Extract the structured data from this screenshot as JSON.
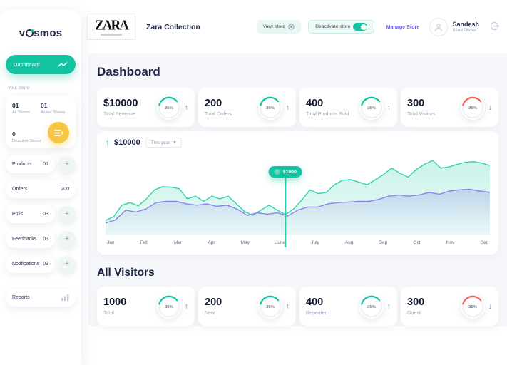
{
  "brand": {
    "prefix": "v",
    "suffix": "smos"
  },
  "header": {
    "store_logo": "ZARA",
    "store_name": "Zara Collection",
    "view_store_label": "View store",
    "deactivate_label": "Deactivate store",
    "manage_store_label": "Manage Store",
    "user": {
      "name": "Sandesh",
      "role": "Store Owner"
    }
  },
  "sidebar": {
    "dashboard_label": "Dashboard",
    "your_store_label": "Your Store",
    "store_stats": [
      {
        "value": "01",
        "label": "All Stores"
      },
      {
        "value": "01",
        "label": "Active Stores"
      },
      {
        "value": "0",
        "label": "Deactive Stores"
      }
    ],
    "menu": [
      {
        "label": "Products",
        "count": "01"
      },
      {
        "label": "Orders",
        "count": "200"
      },
      {
        "label": "Polls",
        "count": "03"
      },
      {
        "label": "Feedbacks",
        "count": "03"
      },
      {
        "label": "Notifications",
        "count": "03"
      },
      {
        "label": "Reports",
        "count": ""
      }
    ]
  },
  "main": {
    "title": "Dashboard",
    "stats": [
      {
        "value": "$10000",
        "label": "Total Revenue",
        "percent": "35%",
        "trend": "up"
      },
      {
        "value": "200",
        "label": "Total Orders",
        "percent": "35%",
        "trend": "up"
      },
      {
        "value": "400",
        "label": "Total Products Sold",
        "percent": "35%",
        "trend": "up"
      },
      {
        "value": "300",
        "label": "Total Visitors",
        "percent": "35%",
        "trend": "down"
      }
    ],
    "chart_header": {
      "amount": "$10000",
      "range_label": "This year"
    },
    "visitors_title": "All Visitors",
    "visitor_stats": [
      {
        "value": "1000",
        "label": "Total",
        "percent": "35%",
        "trend": "up"
      },
      {
        "value": "200",
        "label": "New",
        "percent": "35%",
        "trend": "up"
      },
      {
        "value": "400",
        "label": "Repeated",
        "percent": "35%",
        "trend": "up"
      },
      {
        "value": "300",
        "label": "Guest",
        "percent": "35%",
        "trend": "down"
      }
    ]
  },
  "chart_data": {
    "type": "area",
    "title": "",
    "xlabel": "",
    "ylabel": "",
    "categories": [
      "Jan",
      "Feb",
      "Mar",
      "Apr",
      "May",
      "June",
      "July",
      "Aug",
      "Sep",
      "Oct",
      "Nov",
      "Dec"
    ],
    "ylim": [
      0,
      4000
    ],
    "grid": false,
    "legend": "none",
    "series": [
      {
        "name": "revenue-upper",
        "color": "#33d1ad",
        "values": [
          700,
          900,
          1470,
          1600,
          1440,
          1790,
          2240,
          2400,
          2370,
          2300,
          1790,
          1920,
          1660,
          1920,
          1790,
          1920,
          1540,
          1150,
          960,
          1220,
          1470,
          1220,
          1000,
          1280,
          1730,
          2240,
          2050,
          2110,
          2500,
          2720,
          2750,
          2620,
          2500,
          2750,
          3010,
          3330,
          3070,
          2880,
          3260,
          3520,
          3710,
          3330,
          3390,
          3520,
          3620,
          3650,
          3580,
          3460
        ]
      },
      {
        "name": "revenue-lower",
        "color": "#8c83e8",
        "values": [
          580,
          740,
          1220,
          1120,
          1280,
          1600,
          1660,
          1660,
          1540,
          1470,
          1540,
          1410,
          1470,
          1280,
          960,
          1090,
          1020,
          1090,
          930,
          1220,
          1380,
          1380,
          1540,
          1600,
          1630,
          1660,
          1660,
          1760,
          1920,
          1980,
          1920,
          1980,
          2110,
          2020,
          2180,
          2240,
          2270,
          2180,
          2110
        ]
      }
    ],
    "tooltip": {
      "text": "$1000",
      "month": "June",
      "series_index": 0,
      "point_index": 22
    }
  },
  "colors": {
    "accent": "#13c3a1",
    "red": "#f4645c",
    "yellow": "#f6c643",
    "purple_link": "#6a61e6",
    "navy": "#1c2547",
    "ring_track": "#eef1f6"
  }
}
